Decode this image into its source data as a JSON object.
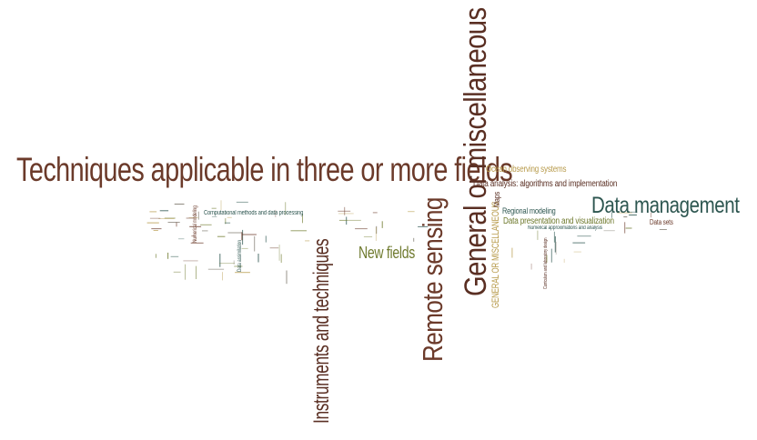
{
  "colors": {
    "brown": "#6b3a2a",
    "dark_brown": "#5a2f23",
    "teal": "#2d5650",
    "olive": "#6f7a2e",
    "gold": "#b79a4a",
    "gray": "#7a7468"
  },
  "words": [
    {
      "text": "Techniques applicable in three or more fields",
      "color": "brown"
    },
    {
      "text": "General or miscellaneous",
      "color": "dark_brown"
    },
    {
      "text": "Remote sensing",
      "color": "brown"
    },
    {
      "text": "Instruments and techniques",
      "color": "dark_brown"
    },
    {
      "text": "Data management",
      "color": "teal"
    },
    {
      "text": "New fields",
      "color": "olive"
    },
    {
      "text": "Ocean observing systems",
      "color": "gold"
    },
    {
      "text": "Data analysis: algorithms and implementation",
      "color": "dark_brown"
    },
    {
      "text": "Regional modeling",
      "color": "teal"
    },
    {
      "text": "Data presentation and visualization",
      "color": "olive"
    },
    {
      "text": "GENERAL OR MISCELLANEOUS",
      "color": "gold"
    },
    {
      "text": "Numerical approximations and analysis",
      "color": "teal"
    },
    {
      "text": "Computational methods and data processing",
      "color": "teal"
    },
    {
      "text": "Numerical modeling",
      "color": "brown"
    },
    {
      "text": "Data assimilation",
      "color": "teal"
    },
    {
      "text": "Maps",
      "color": "dark_brown"
    },
    {
      "text": "Data sets",
      "color": "brown"
    },
    {
      "text": "Curriculum and laboratory design",
      "color": "dark_brown"
    }
  ]
}
